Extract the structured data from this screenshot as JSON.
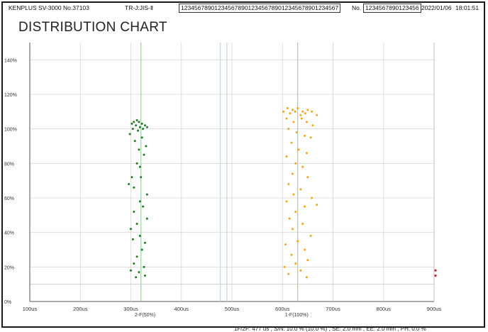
{
  "header": {
    "model": "KENPLUS SV-3000 No.37103",
    "mode": "TR-J:JIS-Ⅱ",
    "code": "12345678901234567890123456789012345678901234567",
    "no_label": "No.",
    "no_value": "1234567890123456",
    "date": "2022/01/06",
    "time": "18:01:51"
  },
  "title": "DISTRIBUTION CHART",
  "footer": "1F/2F: 477 us , S/N: 10.0 % (10.0 %) , SE: 2.0 mm , EE: 2.0 mm , PH: 0.0 %",
  "colors": {
    "series_2F": "#1e7a1e",
    "series_1F": "#f2a516",
    "grid": "#d7d7d7",
    "marker": "#cc2222"
  },
  "chart_data": {
    "type": "scatter",
    "xlim": [
      100,
      900
    ],
    "ylim": [
      0,
      150
    ],
    "x_tick_labels": [
      "100us",
      "200us",
      "300us",
      "400us",
      "500us",
      "600us",
      "700us",
      "800us",
      "900us"
    ],
    "y_tick_labels": [
      "0%",
      "20%",
      "40%",
      "60%",
      "80%",
      "100%",
      "120%",
      "140%"
    ],
    "x_sub_labels": [
      {
        "x": 300,
        "text": "2-F(50%)"
      },
      {
        "x": 600,
        "text": "1-F(100%)"
      }
    ],
    "grid": true,
    "series": [
      {
        "points": [
          [
            312,
            105
          ],
          [
            306,
            104
          ],
          [
            302,
            103
          ],
          [
            316,
            104
          ],
          [
            322,
            103
          ],
          [
            328,
            102
          ],
          [
            318,
            101
          ],
          [
            310,
            102
          ],
          [
            324,
            100
          ],
          [
            314,
            99
          ],
          [
            332,
            101
          ],
          [
            304,
            100
          ],
          [
            298,
            97
          ],
          [
            322,
            95
          ],
          [
            330,
            90
          ],
          [
            316,
            88
          ],
          [
            308,
            93
          ],
          [
            326,
            85
          ],
          [
            318,
            78
          ],
          [
            312,
            80
          ],
          [
            320,
            72
          ],
          [
            302,
            72
          ],
          [
            296,
            68
          ],
          [
            306,
            66
          ],
          [
            332,
            62
          ],
          [
            318,
            58
          ],
          [
            324,
            55
          ],
          [
            306,
            52
          ],
          [
            332,
            48
          ],
          [
            312,
            45
          ],
          [
            300,
            42
          ],
          [
            318,
            38
          ],
          [
            328,
            34
          ],
          [
            304,
            36
          ],
          [
            322,
            30
          ],
          [
            312,
            26
          ],
          [
            306,
            22
          ],
          [
            326,
            20
          ],
          [
            300,
            18
          ],
          [
            316,
            17
          ],
          [
            328,
            15
          ],
          [
            310,
            14
          ]
        ],
        "color": "#1e7a1e"
      },
      {
        "points": [
          [
            610,
            112
          ],
          [
            620,
            111
          ],
          [
            630,
            112
          ],
          [
            640,
            110
          ],
          [
            650,
            111
          ],
          [
            602,
            110
          ],
          [
            615,
            109
          ],
          [
            625,
            110
          ],
          [
            636,
            108
          ],
          [
            645,
            109
          ],
          [
            658,
            110
          ],
          [
            668,
            108
          ],
          [
            608,
            106
          ],
          [
            622,
            104
          ],
          [
            638,
            106
          ],
          [
            648,
            104
          ],
          [
            660,
            102
          ],
          [
            612,
            100
          ],
          [
            628,
            98
          ],
          [
            644,
            96
          ],
          [
            656,
            95
          ],
          [
            618,
            92
          ],
          [
            632,
            88
          ],
          [
            648,
            86
          ],
          [
            608,
            84
          ],
          [
            626,
            80
          ],
          [
            640,
            78
          ],
          [
            620,
            74
          ],
          [
            650,
            72
          ],
          [
            612,
            68
          ],
          [
            636,
            65
          ],
          [
            622,
            62
          ],
          [
            658,
            60
          ],
          [
            608,
            58
          ],
          [
            644,
            55
          ],
          [
            626,
            52
          ],
          [
            668,
            56
          ],
          [
            614,
            48
          ],
          [
            640,
            45
          ],
          [
            620,
            42
          ],
          [
            656,
            38
          ],
          [
            630,
            35
          ],
          [
            606,
            33
          ],
          [
            644,
            30
          ],
          [
            618,
            27
          ],
          [
            650,
            24
          ],
          [
            626,
            22
          ],
          [
            604,
            20
          ],
          [
            636,
            18
          ],
          [
            612,
            16
          ],
          [
            648,
            14
          ]
        ],
        "color": "#f2a516"
      }
    ],
    "markers": [
      [
        900,
        18
      ],
      [
        900,
        15
      ]
    ]
  }
}
